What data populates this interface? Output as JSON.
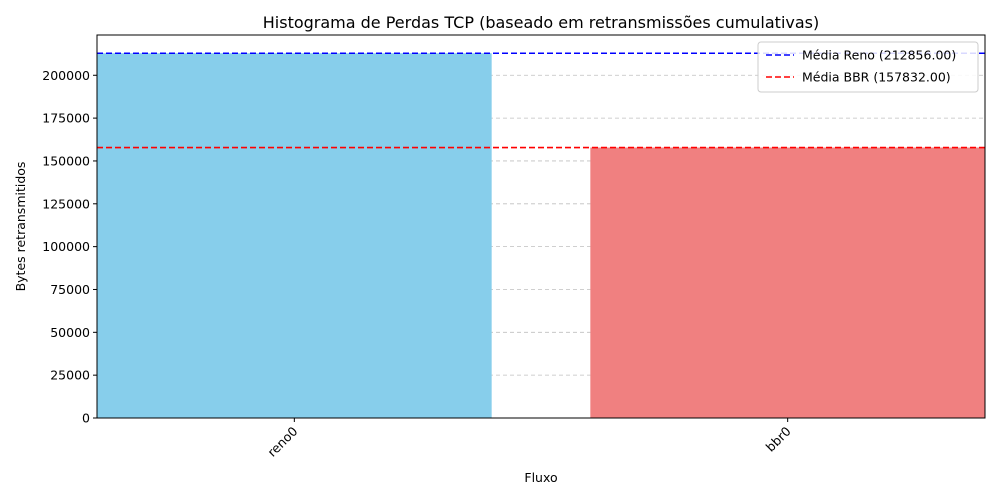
{
  "chart_data": {
    "type": "bar",
    "title": "Histograma de Perdas TCP (baseado em retransmissões cumulativas)",
    "xlabel": "Fluxo",
    "ylabel": "Bytes retransmitidos",
    "categories": [
      "reno0",
      "bbr0"
    ],
    "values": [
      212856,
      157832
    ],
    "bar_colors": [
      "#87ceeb",
      "#f08080"
    ],
    "ylim": [
      0,
      223500
    ],
    "yticks": [
      0,
      25000,
      50000,
      75000,
      100000,
      125000,
      150000,
      175000,
      200000
    ],
    "ytick_labels": [
      "0",
      "25000",
      "50000",
      "75000",
      "100000",
      "125000",
      "150000",
      "175000",
      "200000"
    ],
    "grid": "y-dashed",
    "xtick_rotation": 45,
    "reference_lines": [
      {
        "label": "Média Reno (212856.00)",
        "value": 212856,
        "color": "#0000ff",
        "style": "dashed"
      },
      {
        "label": "Média BBR (157832.00)",
        "value": 157832,
        "color": "#ff0000",
        "style": "dashed"
      }
    ],
    "legend_position": "top-right"
  }
}
